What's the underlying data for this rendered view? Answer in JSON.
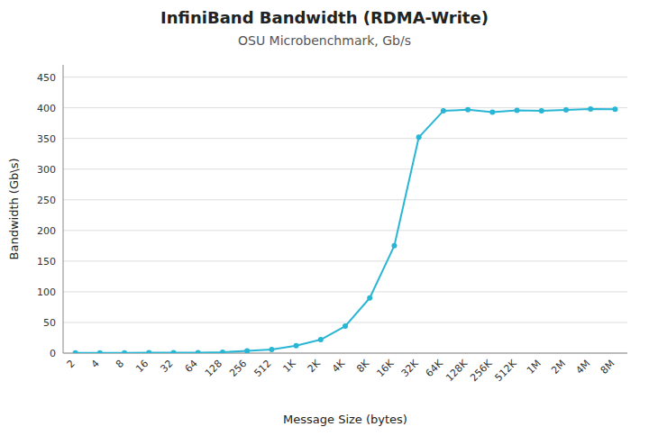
{
  "chart_data": {
    "type": "line",
    "title": "InfiniBand Bandwidth (RDMA-Write)",
    "subtitle": "OSU Microbenchmark, Gb/s",
    "x_label": "Message Size (bytes)",
    "y_label": "Bandwidth (Gb\\s)",
    "categories": [
      "2",
      "4",
      "8",
      "16",
      "32",
      "64",
      "128",
      "256",
      "512",
      "1K",
      "2K",
      "4K",
      "8K",
      "16K",
      "32K",
      "64K",
      "128K",
      "256K",
      "512K",
      "1M",
      "2M",
      "4M",
      "8M"
    ],
    "values": [
      0.3,
      0.4,
      0.5,
      0.6,
      0.7,
      0.9,
      1.5,
      3.5,
      6.0,
      12.0,
      22.0,
      44.0,
      90.0,
      175.0,
      352.0,
      395.0,
      397.0,
      393.0,
      396.0,
      395.0,
      396.5,
      398.0,
      397.5
    ],
    "color": "#29b6d4",
    "marker": "circle",
    "ylim": [
      0,
      470
    ],
    "yticks": [
      0,
      50,
      100,
      150,
      200,
      250,
      300,
      350,
      400,
      450
    ],
    "grid": true
  }
}
